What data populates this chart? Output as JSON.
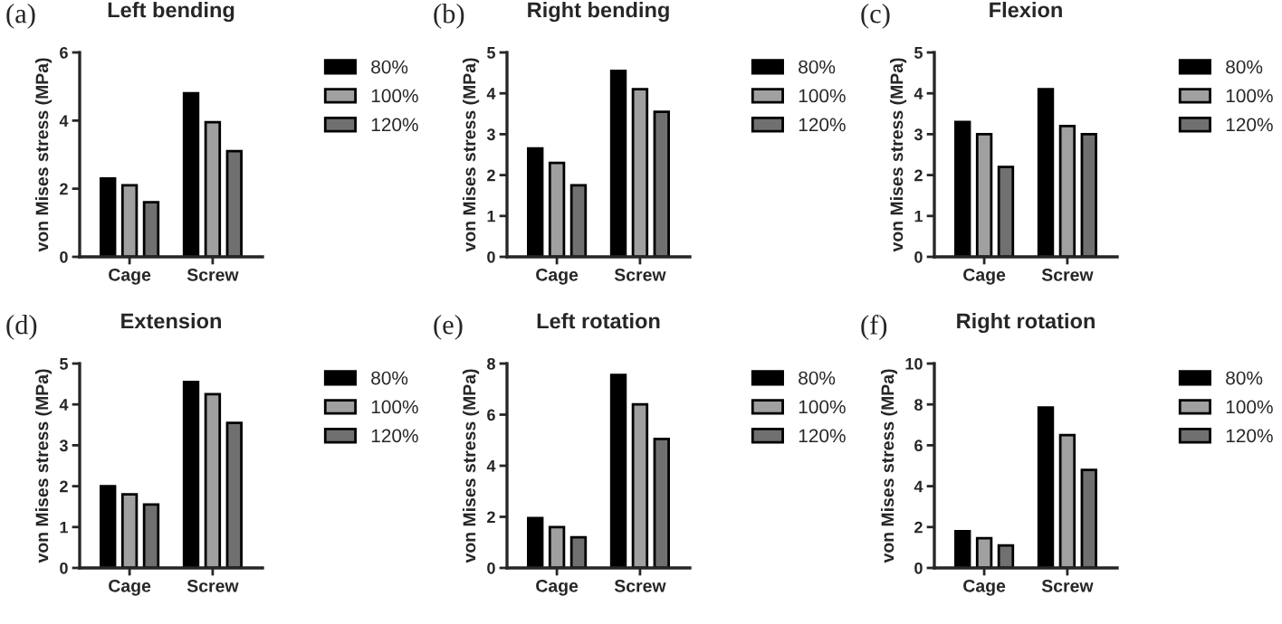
{
  "chart_data": [
    {
      "type": "bar",
      "title": "Left bending",
      "annotations": [
        "(a)"
      ],
      "ylabel": "von Mises stress (MPa)",
      "categories": [
        "Cage",
        "Screw"
      ],
      "ylim": [
        0,
        6
      ],
      "yticks": [
        0,
        2,
        4,
        6
      ],
      "legend": "right",
      "grid": false,
      "series": [
        {
          "name": "80%",
          "color": "#000000",
          "values": [
            2.3,
            4.8
          ]
        },
        {
          "name": "100%",
          "color": "#a0a0a0",
          "values": [
            2.1,
            3.95
          ]
        },
        {
          "name": "120%",
          "color": "#707070",
          "values": [
            1.6,
            3.1
          ]
        }
      ]
    },
    {
      "type": "bar",
      "title": "Right bending",
      "annotations": [
        "(b)"
      ],
      "ylabel": "von Mises stress (MPa)",
      "categories": [
        "Cage",
        "Screw"
      ],
      "ylim": [
        0,
        5
      ],
      "yticks": [
        0,
        1,
        2,
        3,
        4,
        5
      ],
      "legend": "right",
      "grid": false,
      "series": [
        {
          "name": "80%",
          "color": "#000000",
          "values": [
            2.65,
            4.55
          ]
        },
        {
          "name": "100%",
          "color": "#a0a0a0",
          "values": [
            2.3,
            4.1
          ]
        },
        {
          "name": "120%",
          "color": "#707070",
          "values": [
            1.75,
            3.55
          ]
        }
      ]
    },
    {
      "type": "bar",
      "title": "Flexion",
      "annotations": [
        "(c)"
      ],
      "ylabel": "von Mises stress (MPa)",
      "categories": [
        "Cage",
        "Screw"
      ],
      "ylim": [
        0,
        5
      ],
      "yticks": [
        0,
        1,
        2,
        3,
        4,
        5
      ],
      "legend": "right",
      "grid": false,
      "series": [
        {
          "name": "80%",
          "color": "#000000",
          "values": [
            3.3,
            4.1
          ]
        },
        {
          "name": "100%",
          "color": "#a0a0a0",
          "values": [
            3.0,
            3.2
          ]
        },
        {
          "name": "120%",
          "color": "#707070",
          "values": [
            2.2,
            3.0
          ]
        }
      ]
    },
    {
      "type": "bar",
      "title": "Extension",
      "annotations": [
        "(d)"
      ],
      "ylabel": "von Mises stress (MPa)",
      "categories": [
        "Cage",
        "Screw"
      ],
      "ylim": [
        0,
        5
      ],
      "yticks": [
        0,
        1,
        2,
        3,
        4,
        5
      ],
      "legend": "right",
      "grid": false,
      "series": [
        {
          "name": "80%",
          "color": "#000000",
          "values": [
            2.0,
            4.55
          ]
        },
        {
          "name": "100%",
          "color": "#a0a0a0",
          "values": [
            1.8,
            4.25
          ]
        },
        {
          "name": "120%",
          "color": "#707070",
          "values": [
            1.55,
            3.55
          ]
        }
      ]
    },
    {
      "type": "bar",
      "title": "Left rotation",
      "annotations": [
        "(e)"
      ],
      "ylabel": "von Mises stress (MPa)",
      "categories": [
        "Cage",
        "Screw"
      ],
      "ylim": [
        0,
        8
      ],
      "yticks": [
        0,
        2,
        4,
        6,
        8
      ],
      "legend": "right",
      "grid": false,
      "series": [
        {
          "name": "80%",
          "color": "#000000",
          "values": [
            1.95,
            7.55
          ]
        },
        {
          "name": "100%",
          "color": "#a0a0a0",
          "values": [
            1.6,
            6.4
          ]
        },
        {
          "name": "120%",
          "color": "#707070",
          "values": [
            1.2,
            5.05
          ]
        }
      ]
    },
    {
      "type": "bar",
      "title": "Right rotation",
      "annotations": [
        "(f)"
      ],
      "ylabel": "von Mises stress (MPa)",
      "categories": [
        "Cage",
        "Screw"
      ],
      "ylim": [
        0,
        10
      ],
      "yticks": [
        0,
        2,
        4,
        6,
        8,
        10
      ],
      "legend": "right",
      "grid": false,
      "series": [
        {
          "name": "80%",
          "color": "#000000",
          "values": [
            1.8,
            7.85
          ]
        },
        {
          "name": "100%",
          "color": "#a0a0a0",
          "values": [
            1.45,
            6.5
          ]
        },
        {
          "name": "120%",
          "color": "#707070",
          "values": [
            1.1,
            4.8
          ]
        }
      ]
    }
  ]
}
